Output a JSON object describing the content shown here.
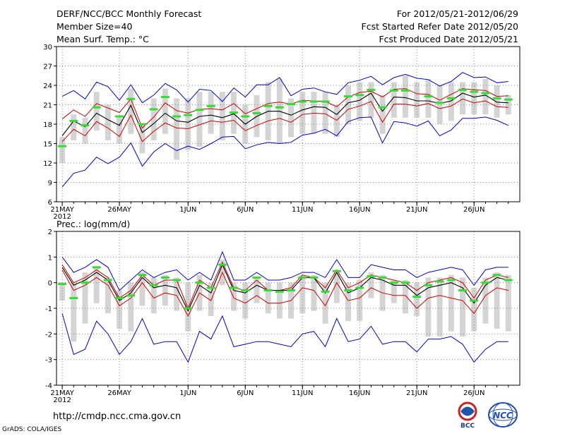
{
  "header": {
    "line1_left": "DERF/NCC/BCC Monthly Forecast",
    "line2_left": "Member Size=40",
    "line3_left": "Mean Surf. Temp.: °C",
    "line1_right": "For 2012/05/21-2012/06/29",
    "line2_right": "Fcst Started Refer Date 2012/05/20",
    "line3_right": "Fcst Produced Date 2012/05/21"
  },
  "footer": {
    "url": "http://cmdp.ncc.cma.gov.cn",
    "credit": "GrADS: COLA/IGES",
    "logo_left_text": "BCC",
    "logo_right_text": "NCC"
  },
  "colors": {
    "envelope": "#0000cc",
    "spread": "#cc0000",
    "mean": "#000000",
    "observed": "#33dd33",
    "box": "#d4d4d4",
    "grid": "#888888"
  },
  "chart_data": [
    {
      "type": "line",
      "title": "Mean Surf. Temp.: °C",
      "xlabel": "",
      "ylabel": "°C",
      "ylim": [
        6,
        30
      ],
      "yticks": [
        "6",
        "9",
        "12",
        "15",
        "18",
        "21",
        "24",
        "27",
        "30"
      ],
      "xticks": [
        {
          "day": 1,
          "label": "21MAY",
          "sub": "2012"
        },
        {
          "day": 6,
          "label": "26MAY"
        },
        {
          "day": 12,
          "label": "1JUN"
        },
        {
          "day": 17,
          "label": "6JUN"
        },
        {
          "day": 22,
          "label": "11JUN"
        },
        {
          "day": 27,
          "label": "16JUN"
        },
        {
          "day": 32,
          "label": "21JUN"
        },
        {
          "day": 37,
          "label": "26JUN"
        }
      ],
      "days": [
        1,
        2,
        3,
        4,
        5,
        6,
        7,
        8,
        9,
        10,
        11,
        12,
        13,
        14,
        15,
        16,
        17,
        18,
        19,
        20,
        21,
        22,
        23,
        24,
        25,
        26,
        27,
        28,
        29,
        30,
        31,
        32,
        33,
        34,
        35,
        36,
        37,
        38,
        39,
        40
      ],
      "series": [
        {
          "name": "max",
          "values": [
            22.3,
            23.2,
            21.9,
            24.5,
            23.8,
            21.7,
            24.1,
            21.3,
            22.5,
            24.3,
            23.3,
            21.4,
            23.4,
            23.2,
            21.5,
            23.6,
            22.2,
            24.1,
            24.1,
            25.2,
            22.4,
            23.4,
            23.6,
            23.0,
            22.6,
            24.4,
            24.8,
            25.4,
            24.1,
            25.2,
            25.7,
            25.1,
            24.9,
            23.9,
            24.6,
            26.0,
            25.2,
            25.3,
            24.4,
            24.6
          ]
        },
        {
          "name": "upper",
          "values": [
            18.8,
            20.2,
            19.2,
            21.2,
            20.5,
            19.8,
            21.9,
            17.4,
            19.1,
            21.3,
            20.1,
            19.7,
            20.3,
            20.4,
            20.2,
            21.2,
            19.6,
            20.4,
            21.2,
            21.4,
            21.1,
            21.7,
            21.6,
            21.5,
            20.7,
            22.2,
            22.9,
            23.1,
            22.2,
            23.4,
            23.5,
            22.7,
            22.6,
            21.7,
            22.6,
            23.5,
            23.3,
            23.2,
            22.3,
            22.4
          ]
        },
        {
          "name": "mean",
          "values": [
            16.2,
            18.5,
            17.6,
            19.7,
            18.7,
            17.8,
            20.9,
            16.7,
            18.1,
            19.7,
            18.5,
            18.3,
            19.2,
            19.4,
            19.0,
            19.6,
            18.0,
            19.2,
            20.0,
            20.0,
            19.4,
            20.2,
            20.7,
            20.6,
            19.5,
            21.3,
            21.7,
            22.8,
            20.0,
            22.2,
            22.1,
            21.6,
            21.6,
            21.2,
            21.6,
            22.8,
            22.2,
            22.5,
            21.4,
            21.3
          ]
        },
        {
          "name": "lower",
          "values": [
            15.3,
            17.2,
            16.2,
            18.4,
            17.4,
            16.1,
            19.4,
            15.3,
            16.9,
            18.2,
            17.4,
            17.3,
            17.9,
            18.5,
            18.3,
            18.6,
            17.0,
            17.8,
            18.5,
            18.9,
            18.3,
            19.5,
            19.7,
            19.6,
            18.6,
            20.3,
            20.8,
            21.5,
            18.3,
            21.1,
            21.1,
            20.8,
            21.2,
            20.4,
            20.8,
            21.9,
            21.3,
            21.6,
            20.7,
            20.6
          ]
        },
        {
          "name": "min",
          "values": [
            8.3,
            10.4,
            10.9,
            12.9,
            11.9,
            12.9,
            15.1,
            11.5,
            13.7,
            15.0,
            13.9,
            14.6,
            14.1,
            15.0,
            16.0,
            16.1,
            14.2,
            14.8,
            15.2,
            15.0,
            15.2,
            16.3,
            16.6,
            17.2,
            16.2,
            18.4,
            19.0,
            19.1,
            15.1,
            18.4,
            18.2,
            17.7,
            18.5,
            16.2,
            17.1,
            18.9,
            18.9,
            19.1,
            18.6,
            17.8
          ]
        },
        {
          "name": "observed",
          "values": [
            14.6,
            18.5,
            17.8,
            20.6,
            null,
            19.2,
            21.9,
            18.0,
            20.3,
            22.2,
            19.2,
            19.4,
            20.2,
            20.8,
            null,
            19.8,
            19.2,
            19.7,
            20.8,
            20.6,
            21.1,
            21.5,
            21.5,
            21.5,
            null,
            22.3,
            22.5,
            23.3,
            20.6,
            23.2,
            23.2,
            null,
            22.3,
            21.3,
            22.0,
            23.3,
            23.0,
            22.8,
            22.0,
            21.8
          ]
        },
        {
          "name": "box_high",
          "values": [
            16.0,
            19.5,
            19.0,
            23.0,
            21.0,
            19.0,
            23.5,
            18.0,
            22.0,
            23.5,
            22.0,
            22.0,
            23.0,
            23.0,
            23.0,
            23.0,
            21.0,
            22.5,
            24.5,
            25.0,
            22.0,
            23.0,
            23.0,
            23.0,
            21.0,
            24.0,
            24.5,
            24.5,
            22.5,
            24.5,
            25.5,
            24.5,
            25.0,
            24.0,
            24.5,
            24.5,
            24.5,
            25.0,
            24.0,
            22.5
          ]
        },
        {
          "name": "box_low",
          "values": [
            12.0,
            15.5,
            15.0,
            17.0,
            15.5,
            15.0,
            16.5,
            13.5,
            15.5,
            16.5,
            12.5,
            14.0,
            14.5,
            16.5,
            15.5,
            16.5,
            15.0,
            16.0,
            15.5,
            15.0,
            16.0,
            16.5,
            16.5,
            16.5,
            16.0,
            18.0,
            18.5,
            19.0,
            16.5,
            19.0,
            19.0,
            19.0,
            19.0,
            18.0,
            18.5,
            19.5,
            19.5,
            19.5,
            19.0,
            19.5
          ]
        }
      ]
    },
    {
      "type": "line",
      "title": "Prec.: log(mm/d)",
      "xlabel": "",
      "ylabel": "log(mm/d)",
      "ylim": [
        -4,
        2
      ],
      "yticks": [
        "-4",
        "-3",
        "-2",
        "-1",
        "0",
        "1",
        "2"
      ],
      "xticks": [
        {
          "day": 1,
          "label": "21MAY",
          "sub": "2012"
        },
        {
          "day": 6,
          "label": "26MAY"
        },
        {
          "day": 12,
          "label": "1JUN"
        },
        {
          "day": 17,
          "label": "6JUN"
        },
        {
          "day": 22,
          "label": "11JUN"
        },
        {
          "day": 27,
          "label": "16JUN"
        },
        {
          "day": 32,
          "label": "21JUN"
        },
        {
          "day": 37,
          "label": "26JUN"
        }
      ],
      "days": [
        1,
        2,
        3,
        4,
        5,
        6,
        7,
        8,
        9,
        10,
        11,
        12,
        13,
        14,
        15,
        16,
        17,
        18,
        19,
        20,
        21,
        22,
        23,
        24,
        25,
        26,
        27,
        28,
        29,
        30,
        31,
        32,
        33,
        34,
        35,
        36,
        37,
        38,
        39,
        40
      ],
      "series": [
        {
          "name": "max",
          "values": [
            1.0,
            0.4,
            0.6,
            0.9,
            0.6,
            -0.3,
            0.1,
            0.5,
            0.2,
            0.4,
            0.5,
            0.1,
            0.4,
            0.1,
            1.2,
            0.1,
            0.1,
            0.4,
            0.1,
            0.1,
            0.2,
            0.4,
            0.4,
            0.2,
            0.9,
            0.2,
            0.2,
            0.7,
            0.6,
            0.5,
            0.5,
            0.2,
            0.4,
            0.5,
            0.6,
            0.5,
            -0.1,
            0.5,
            0.6,
            0.6
          ]
        },
        {
          "name": "upper",
          "values": [
            0.7,
            0.0,
            0.2,
            0.5,
            0.2,
            -0.6,
            -0.3,
            0.3,
            -0.1,
            0.1,
            0.1,
            -1.0,
            0.1,
            -0.2,
            0.8,
            -0.2,
            -0.3,
            0.1,
            -0.3,
            -0.3,
            -0.2,
            0.3,
            0.2,
            -0.2,
            0.5,
            -0.2,
            0.0,
            0.3,
            0.2,
            0.1,
            0.0,
            -0.3,
            0.0,
            0.1,
            0.2,
            0.0,
            -0.6,
            0.1,
            0.3,
            0.2
          ]
        },
        {
          "name": "mean",
          "values": [
            0.6,
            -0.1,
            0.1,
            0.4,
            0.1,
            -0.7,
            -0.4,
            0.2,
            -0.2,
            -0.1,
            -0.2,
            -1.1,
            -0.1,
            -0.4,
            0.7,
            -0.3,
            -0.4,
            -0.1,
            -0.3,
            -0.3,
            -0.3,
            0.2,
            0.2,
            -0.4,
            0.4,
            -0.4,
            -0.2,
            0.2,
            0.1,
            -0.1,
            -0.1,
            -0.5,
            -0.2,
            -0.1,
            0.0,
            -0.2,
            -0.8,
            -0.1,
            0.2,
            0.1
          ]
        },
        {
          "name": "lower",
          "values": [
            0.5,
            -0.3,
            -0.1,
            0.2,
            -0.1,
            -0.9,
            -0.6,
            0.0,
            -0.6,
            -0.4,
            -0.5,
            -1.3,
            -0.4,
            -0.7,
            0.4,
            -0.6,
            -0.8,
            -0.5,
            -0.8,
            -0.8,
            -0.7,
            -0.2,
            -0.3,
            -0.9,
            0.0,
            -0.7,
            -0.6,
            -0.2,
            -0.4,
            -0.5,
            -0.5,
            -1.0,
            -0.6,
            -0.5,
            -0.6,
            -0.7,
            -1.2,
            -0.5,
            -0.2,
            -0.3
          ]
        },
        {
          "name": "min",
          "values": [
            -1.2,
            -2.8,
            -2.6,
            -1.5,
            -2.0,
            -2.8,
            -2.3,
            -1.4,
            -2.4,
            -2.3,
            -2.3,
            -3.1,
            -1.9,
            -2.2,
            -1.3,
            -2.5,
            -2.4,
            -2.3,
            -2.3,
            -2.4,
            -2.5,
            -2.0,
            -1.9,
            -2.5,
            -1.4,
            -2.3,
            -2.2,
            -1.7,
            -2.4,
            -2.3,
            -2.3,
            -2.7,
            -2.2,
            -2.2,
            -2.1,
            -2.4,
            -3.1,
            -2.6,
            -2.3,
            -2.3
          ]
        },
        {
          "name": "observed",
          "values": [
            -0.05,
            -0.6,
            0.0,
            0.6,
            0.1,
            -0.6,
            -0.5,
            0.3,
            -0.1,
            0.2,
            0.1,
            -1.0,
            0.0,
            -0.2,
            0.7,
            -0.2,
            -0.3,
            0.2,
            -0.3,
            -0.35,
            -0.3,
            0.2,
            0.2,
            -0.35,
            0.45,
            -0.3,
            -0.2,
            0.25,
            0.2,
            0.0,
            0.0,
            -0.55,
            -0.1,
            0.05,
            0.1,
            -0.3,
            -0.7,
            0.0,
            0.3,
            0.1
          ]
        },
        {
          "name": "box_high",
          "values": [
            0.0,
            0.0,
            0.4,
            0.6,
            0.2,
            -0.3,
            0.0,
            0.4,
            0.2,
            0.3,
            0.2,
            0.0,
            0.3,
            0.0,
            0.9,
            0.0,
            0.0,
            0.2,
            0.0,
            0.0,
            0.0,
            0.3,
            0.3,
            0.0,
            0.5,
            0.0,
            0.1,
            0.4,
            0.3,
            0.1,
            0.1,
            0.0,
            0.2,
            0.2,
            0.3,
            0.2,
            -0.2,
            0.2,
            0.4,
            0.3
          ]
        },
        {
          "name": "box_low",
          "values": [
            -0.7,
            -2.3,
            -1.6,
            -0.8,
            -1.2,
            -1.8,
            -1.9,
            -0.9,
            -1.2,
            -0.9,
            -1.1,
            -1.9,
            -1.1,
            -1.3,
            -0.1,
            -1.1,
            -1.4,
            -0.8,
            -1.2,
            -1.4,
            -1.4,
            -1.2,
            -1.1,
            -1.6,
            -0.8,
            -1.5,
            -1.5,
            -0.6,
            -1.1,
            -0.8,
            -1.2,
            -1.3,
            -2.1,
            -2.1,
            -1.9,
            -2.1,
            -1.9,
            -1.6,
            -1.8,
            -1.9
          ]
        }
      ]
    }
  ]
}
